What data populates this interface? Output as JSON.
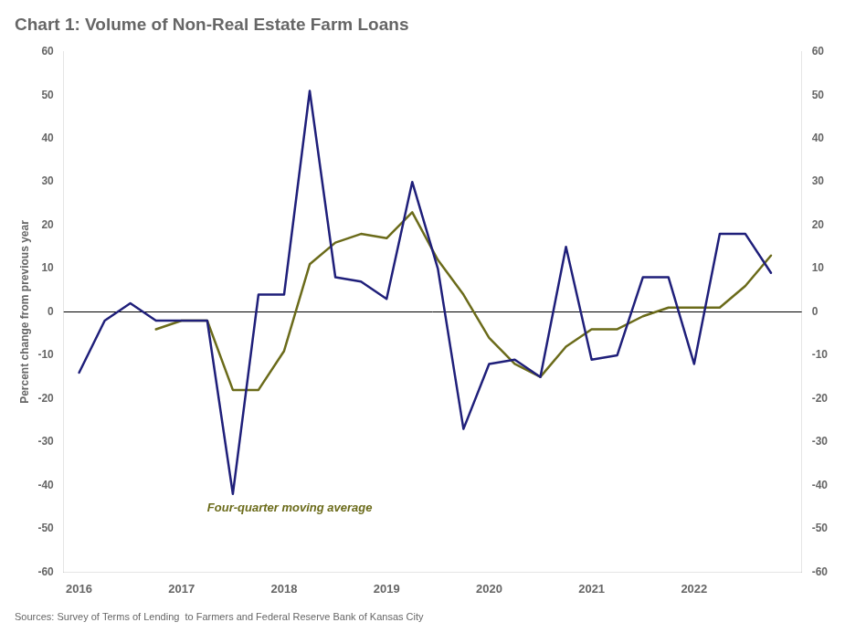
{
  "chart_data": {
    "type": "line",
    "title": "Chart 1: Volume of Non-Real Estate Farm Loans",
    "ylabel": "Percent change from previous year",
    "source": "Sources: Survey of Terms of Lending  to Farmers and Federal Reserve Bank of Kansas City",
    "annotations": [
      {
        "text": "Four-quarter moving average",
        "x": 2017.25,
        "y": -46,
        "color": "#6b6b1a"
      }
    ],
    "x": [
      2016.0,
      2016.25,
      2016.5,
      2016.75,
      2017.0,
      2017.25,
      2017.5,
      2017.75,
      2018.0,
      2018.25,
      2018.5,
      2018.75,
      2019.0,
      2019.25,
      2019.5,
      2019.75,
      2020.0,
      2020.25,
      2020.5,
      2020.75,
      2021.0,
      2021.25,
      2021.5,
      2021.75,
      2022.0,
      2022.25,
      2022.5,
      2022.75
    ],
    "series": [
      {
        "color": "#1f1f7a",
        "values": [
          -14,
          -2,
          2,
          -2,
          -2,
          -2,
          -42,
          4,
          4,
          51,
          8,
          7,
          3,
          30,
          10,
          -27,
          -12,
          -11,
          -15,
          15,
          -11,
          -10,
          8,
          8,
          -12,
          18,
          18,
          9
        ]
      },
      {
        "color": "#6b6b1a",
        "values": [
          null,
          null,
          null,
          -4,
          -2,
          -2,
          -18,
          -18,
          -9,
          11,
          16,
          18,
          17,
          23,
          12,
          4,
          -6,
          -12,
          -15,
          -8,
          -4,
          -4,
          -1,
          1,
          1,
          1,
          6,
          13
        ]
      }
    ],
    "xlim": [
      2015.85,
      2023.05
    ],
    "xticks": [
      2016,
      2017,
      2018,
      2019,
      2020,
      2021,
      2022
    ],
    "ylim": [
      -60,
      60
    ],
    "yticks": [
      -60,
      -50,
      -40,
      -30,
      -20,
      -10,
      0,
      10,
      20,
      30,
      40,
      50,
      60
    ],
    "y2lim": [
      -60,
      60
    ],
    "y2ticks": [
      -60,
      -50,
      -40,
      -30,
      -20,
      -10,
      0,
      10,
      20,
      30,
      40,
      50,
      60
    ],
    "grid": false
  }
}
